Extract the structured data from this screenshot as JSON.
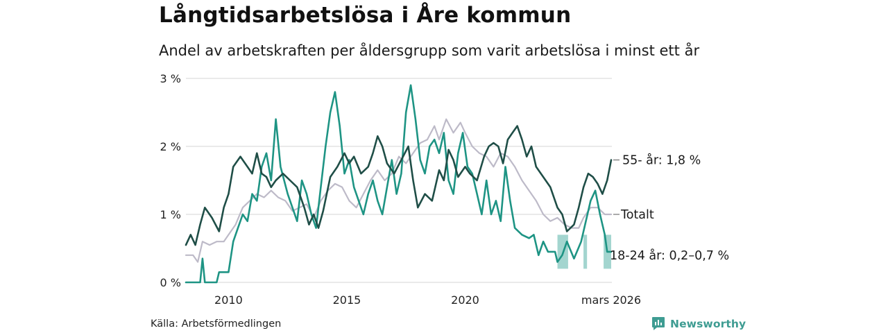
{
  "title": "Långtidsarbetslösa i Åre kommun",
  "subtitle": "Andel av arbetskraften per åldersgrupp som varit arbetslösa i minst ett år",
  "source": "Källa: Arbetsförmedlingen",
  "brand": "Newsworthy",
  "colors": {
    "age55": "#1f4e47",
    "total": "#bdbac8",
    "age18_24": "#1e9484",
    "band": "#a3d5cf",
    "grid": "#dddddd",
    "brand": "#3e9c92"
  },
  "chart_data": {
    "type": "line",
    "title": "Långtidsarbetslösa i Åre kommun",
    "ylim": [
      0,
      3
    ],
    "yticks": [
      0,
      1,
      2,
      3
    ],
    "ytick_labels": [
      "0 %",
      "1 %",
      "2 %",
      "3 %"
    ],
    "xlim": [
      2008.2,
      2026.2
    ],
    "xticks": [
      2010,
      2015,
      2020,
      2026.17
    ],
    "xtick_labels": [
      "2010",
      "2015",
      "2020",
      "mars 2026"
    ],
    "grid": true,
    "series": [
      {
        "name": "55- år",
        "label": "55- år: 1,8 %",
        "color_key": "age55",
        "points": [
          [
            2008.2,
            0.55
          ],
          [
            2008.4,
            0.7
          ],
          [
            2008.6,
            0.55
          ],
          [
            2008.8,
            0.85
          ],
          [
            2009.0,
            1.1
          ],
          [
            2009.3,
            0.95
          ],
          [
            2009.6,
            0.75
          ],
          [
            2009.8,
            1.1
          ],
          [
            2010.0,
            1.3
          ],
          [
            2010.2,
            1.7
          ],
          [
            2010.5,
            1.85
          ],
          [
            2010.8,
            1.7
          ],
          [
            2011.0,
            1.6
          ],
          [
            2011.2,
            1.9
          ],
          [
            2011.4,
            1.6
          ],
          [
            2011.6,
            1.55
          ],
          [
            2011.8,
            1.4
          ],
          [
            2012.0,
            1.5
          ],
          [
            2012.3,
            1.6
          ],
          [
            2012.6,
            1.5
          ],
          [
            2012.9,
            1.4
          ],
          [
            2013.2,
            1.1
          ],
          [
            2013.4,
            0.85
          ],
          [
            2013.6,
            1.0
          ],
          [
            2013.8,
            0.8
          ],
          [
            2014.0,
            1.05
          ],
          [
            2014.3,
            1.55
          ],
          [
            2014.6,
            1.7
          ],
          [
            2014.9,
            1.9
          ],
          [
            2015.1,
            1.75
          ],
          [
            2015.3,
            1.85
          ],
          [
            2015.6,
            1.6
          ],
          [
            2015.9,
            1.7
          ],
          [
            2016.1,
            1.9
          ],
          [
            2016.3,
            2.15
          ],
          [
            2016.5,
            2.0
          ],
          [
            2016.7,
            1.75
          ],
          [
            2017.0,
            1.6
          ],
          [
            2017.3,
            1.8
          ],
          [
            2017.6,
            2.0
          ],
          [
            2017.8,
            1.5
          ],
          [
            2018.0,
            1.1
          ],
          [
            2018.3,
            1.3
          ],
          [
            2018.6,
            1.2
          ],
          [
            2018.9,
            1.65
          ],
          [
            2019.1,
            1.5
          ],
          [
            2019.3,
            1.95
          ],
          [
            2019.5,
            1.8
          ],
          [
            2019.7,
            1.55
          ],
          [
            2020.0,
            1.7
          ],
          [
            2020.2,
            1.6
          ],
          [
            2020.5,
            1.5
          ],
          [
            2020.8,
            1.85
          ],
          [
            2021.0,
            2.0
          ],
          [
            2021.2,
            2.05
          ],
          [
            2021.4,
            2.0
          ],
          [
            2021.6,
            1.75
          ],
          [
            2021.8,
            2.1
          ],
          [
            2022.0,
            2.2
          ],
          [
            2022.2,
            2.3
          ],
          [
            2022.4,
            2.1
          ],
          [
            2022.6,
            1.85
          ],
          [
            2022.8,
            2.0
          ],
          [
            2023.0,
            1.7
          ],
          [
            2023.3,
            1.55
          ],
          [
            2023.6,
            1.4
          ],
          [
            2023.9,
            1.1
          ],
          [
            2024.1,
            1.0
          ],
          [
            2024.3,
            0.75
          ],
          [
            2024.6,
            0.85
          ],
          [
            2024.8,
            1.1
          ],
          [
            2025.0,
            1.4
          ],
          [
            2025.2,
            1.6
          ],
          [
            2025.4,
            1.55
          ],
          [
            2025.6,
            1.45
          ],
          [
            2025.8,
            1.3
          ],
          [
            2026.0,
            1.5
          ],
          [
            2026.17,
            1.8
          ]
        ]
      },
      {
        "name": "Totalt",
        "label": "Totalt",
        "color_key": "total",
        "points": [
          [
            2008.2,
            0.4
          ],
          [
            2008.5,
            0.4
          ],
          [
            2008.7,
            0.3
          ],
          [
            2008.9,
            0.6
          ],
          [
            2009.2,
            0.55
          ],
          [
            2009.5,
            0.6
          ],
          [
            2009.8,
            0.6
          ],
          [
            2010.0,
            0.7
          ],
          [
            2010.3,
            0.85
          ],
          [
            2010.6,
            1.1
          ],
          [
            2010.9,
            1.2
          ],
          [
            2011.2,
            1.3
          ],
          [
            2011.5,
            1.25
          ],
          [
            2011.8,
            1.35
          ],
          [
            2012.1,
            1.25
          ],
          [
            2012.4,
            1.2
          ],
          [
            2012.7,
            1.05
          ],
          [
            2013.0,
            1.1
          ],
          [
            2013.3,
            1.15
          ],
          [
            2013.6,
            0.95
          ],
          [
            2013.9,
            1.2
          ],
          [
            2014.2,
            1.35
          ],
          [
            2014.5,
            1.45
          ],
          [
            2014.8,
            1.4
          ],
          [
            2015.1,
            1.2
          ],
          [
            2015.4,
            1.1
          ],
          [
            2015.7,
            1.3
          ],
          [
            2016.0,
            1.5
          ],
          [
            2016.3,
            1.65
          ],
          [
            2016.6,
            1.5
          ],
          [
            2016.9,
            1.6
          ],
          [
            2017.2,
            1.85
          ],
          [
            2017.5,
            1.75
          ],
          [
            2017.8,
            1.9
          ],
          [
            2018.1,
            2.05
          ],
          [
            2018.4,
            2.1
          ],
          [
            2018.7,
            2.3
          ],
          [
            2018.9,
            2.1
          ],
          [
            2019.2,
            2.4
          ],
          [
            2019.5,
            2.2
          ],
          [
            2019.8,
            2.35
          ],
          [
            2020.0,
            2.2
          ],
          [
            2020.3,
            2.0
          ],
          [
            2020.6,
            1.9
          ],
          [
            2020.9,
            1.85
          ],
          [
            2021.2,
            1.7
          ],
          [
            2021.5,
            1.9
          ],
          [
            2021.8,
            1.85
          ],
          [
            2022.1,
            1.7
          ],
          [
            2022.4,
            1.5
          ],
          [
            2022.7,
            1.35
          ],
          [
            2023.0,
            1.2
          ],
          [
            2023.3,
            1.0
          ],
          [
            2023.6,
            0.9
          ],
          [
            2023.9,
            0.95
          ],
          [
            2024.2,
            0.85
          ],
          [
            2024.5,
            0.8
          ],
          [
            2024.8,
            0.8
          ],
          [
            2025.0,
            0.95
          ],
          [
            2025.3,
            1.1
          ],
          [
            2025.6,
            1.1
          ],
          [
            2025.9,
            1.0
          ],
          [
            2026.17,
            1.0
          ]
        ]
      },
      {
        "name": "18-24 år",
        "label": "18-24 år: 0,2–0,7 %",
        "color_key": "age18_24",
        "points": [
          [
            2008.2,
            0.0
          ],
          [
            2008.8,
            0.0
          ],
          [
            2008.9,
            0.35
          ],
          [
            2009.0,
            0.0
          ],
          [
            2009.5,
            0.0
          ],
          [
            2009.6,
            0.15
          ],
          [
            2010.0,
            0.15
          ],
          [
            2010.2,
            0.6
          ],
          [
            2010.4,
            0.8
          ],
          [
            2010.6,
            1.0
          ],
          [
            2010.8,
            0.9
          ],
          [
            2011.0,
            1.3
          ],
          [
            2011.2,
            1.2
          ],
          [
            2011.4,
            1.7
          ],
          [
            2011.6,
            1.9
          ],
          [
            2011.8,
            1.5
          ],
          [
            2012.0,
            2.4
          ],
          [
            2012.2,
            1.7
          ],
          [
            2012.5,
            1.3
          ],
          [
            2012.7,
            1.1
          ],
          [
            2012.9,
            0.9
          ],
          [
            2013.1,
            1.5
          ],
          [
            2013.3,
            1.3
          ],
          [
            2013.5,
            1.0
          ],
          [
            2013.7,
            0.8
          ],
          [
            2013.9,
            1.4
          ],
          [
            2014.1,
            2.0
          ],
          [
            2014.3,
            2.5
          ],
          [
            2014.5,
            2.8
          ],
          [
            2014.7,
            2.3
          ],
          [
            2014.9,
            1.6
          ],
          [
            2015.1,
            1.8
          ],
          [
            2015.3,
            1.4
          ],
          [
            2015.5,
            1.2
          ],
          [
            2015.7,
            1.0
          ],
          [
            2015.9,
            1.3
          ],
          [
            2016.1,
            1.5
          ],
          [
            2016.3,
            1.2
          ],
          [
            2016.5,
            1.0
          ],
          [
            2016.7,
            1.4
          ],
          [
            2016.9,
            1.8
          ],
          [
            2017.1,
            1.3
          ],
          [
            2017.3,
            1.6
          ],
          [
            2017.5,
            2.5
          ],
          [
            2017.7,
            2.9
          ],
          [
            2017.9,
            2.4
          ],
          [
            2018.1,
            1.8
          ],
          [
            2018.3,
            1.6
          ],
          [
            2018.5,
            2.0
          ],
          [
            2018.7,
            2.1
          ],
          [
            2018.9,
            1.9
          ],
          [
            2019.1,
            2.2
          ],
          [
            2019.3,
            1.5
          ],
          [
            2019.5,
            1.3
          ],
          [
            2019.7,
            1.9
          ],
          [
            2019.9,
            2.2
          ],
          [
            2020.1,
            1.7
          ],
          [
            2020.3,
            1.6
          ],
          [
            2020.5,
            1.3
          ],
          [
            2020.7,
            1.0
          ],
          [
            2020.9,
            1.5
          ],
          [
            2021.1,
            1.0
          ],
          [
            2021.3,
            1.2
          ],
          [
            2021.5,
            0.9
          ],
          [
            2021.7,
            1.7
          ],
          [
            2021.9,
            1.2
          ],
          [
            2022.1,
            0.8
          ],
          [
            2022.4,
            0.7
          ],
          [
            2022.7,
            0.65
          ],
          [
            2022.9,
            0.7
          ],
          [
            2023.1,
            0.4
          ],
          [
            2023.3,
            0.6
          ],
          [
            2023.5,
            0.45
          ],
          [
            2023.8,
            0.45
          ],
          [
            2023.9,
            0.3
          ],
          [
            2024.1,
            0.4
          ],
          [
            2024.3,
            0.6
          ],
          [
            2024.6,
            0.35
          ],
          [
            2024.9,
            0.6
          ],
          [
            2025.1,
            0.9
          ],
          [
            2025.3,
            1.2
          ],
          [
            2025.5,
            1.35
          ],
          [
            2025.7,
            1.0
          ],
          [
            2025.9,
            0.7
          ],
          [
            2026.0,
            0.45
          ],
          [
            2026.17,
            0.45
          ]
        ]
      }
    ],
    "band": {
      "name": "18-24 år (osäkerhetsintervall)",
      "color_key": "band",
      "segments": [
        [
          2023.9,
          2024.35,
          0.2,
          0.7
        ],
        [
          2025.0,
          2025.15,
          0.2,
          0.7
        ],
        [
          2025.85,
          2026.17,
          0.2,
          0.7
        ]
      ]
    }
  }
}
